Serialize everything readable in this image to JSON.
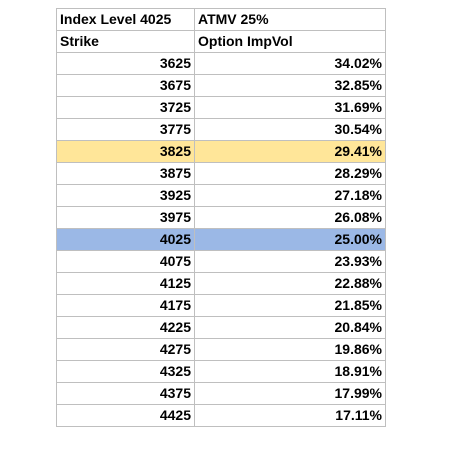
{
  "header": {
    "index_label": "Index Level 4025",
    "atmv_label": "ATMV 25%"
  },
  "columns": {
    "strike": "Strike",
    "impvol": "Option ImpVol"
  },
  "rows": [
    {
      "strike": "3625",
      "impvol": "34.02%"
    },
    {
      "strike": "3675",
      "impvol": "32.85%"
    },
    {
      "strike": "3725",
      "impvol": "31.69%"
    },
    {
      "strike": "3775",
      "impvol": "30.54%"
    },
    {
      "strike": "3825",
      "impvol": "29.41%",
      "highlight": "#ffe699"
    },
    {
      "strike": "3875",
      "impvol": "28.29%"
    },
    {
      "strike": "3925",
      "impvol": "27.18%"
    },
    {
      "strike": "3975",
      "impvol": "26.08%"
    },
    {
      "strike": "4025",
      "impvol": "25.00%",
      "highlight": "#9bb8e6"
    },
    {
      "strike": "4075",
      "impvol": "23.93%"
    },
    {
      "strike": "4125",
      "impvol": "22.88%"
    },
    {
      "strike": "4175",
      "impvol": "21.85%"
    },
    {
      "strike": "4225",
      "impvol": "20.84%"
    },
    {
      "strike": "4275",
      "impvol": "19.86%"
    },
    {
      "strike": "4325",
      "impvol": "18.91%"
    },
    {
      "strike": "4375",
      "impvol": "17.99%"
    },
    {
      "strike": "4425",
      "impvol": "17.11%"
    }
  ]
}
